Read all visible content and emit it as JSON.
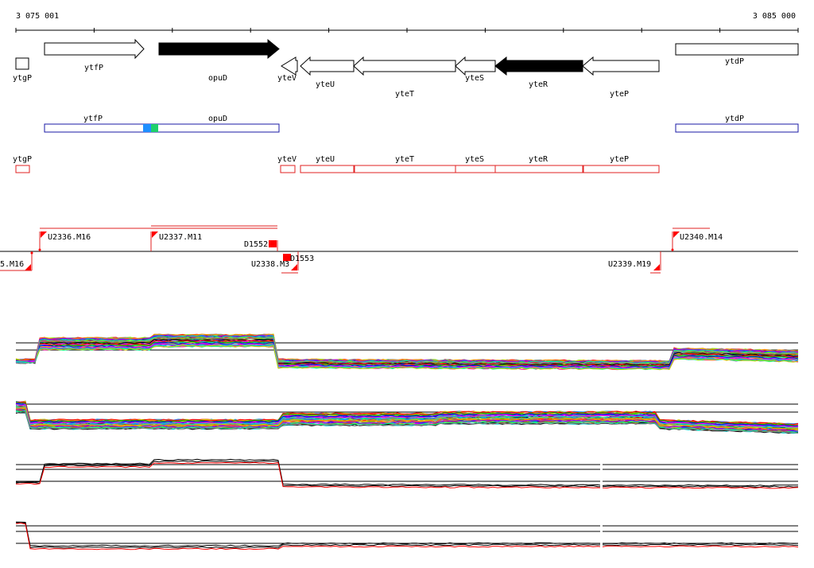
{
  "ruler": {
    "start_label": "3 075 001",
    "end_label": "3 085 000"
  },
  "genes": {
    "top_row": [
      {
        "label": "ytgP",
        "strand": "none",
        "fill": "open"
      },
      {
        "label": "ytfP",
        "strand": "forward",
        "fill": "open"
      },
      {
        "label": "opuD",
        "strand": "forward",
        "fill": "solid"
      },
      {
        "label": "yteV",
        "strand": "reverse",
        "fill": "open"
      },
      {
        "label": "yteU",
        "strand": "reverse",
        "fill": "open"
      },
      {
        "label": "yteT",
        "strand": "reverse",
        "fill": "open"
      },
      {
        "label": "yteS",
        "strand": "reverse",
        "fill": "open"
      },
      {
        "label": "yteR",
        "strand": "reverse",
        "fill": "solid"
      },
      {
        "label": "yteP",
        "strand": "reverse",
        "fill": "open"
      },
      {
        "label": "ytdP",
        "strand": "none",
        "fill": "open"
      }
    ],
    "blue_row": [
      {
        "label": "ytfP"
      },
      {
        "label": "opuD"
      },
      {
        "label": "ytdP"
      }
    ],
    "red_row": [
      {
        "label": "ytgP"
      },
      {
        "label": "yteV"
      },
      {
        "label": "yteU"
      },
      {
        "label": "yteT"
      },
      {
        "label": "yteS"
      },
      {
        "label": "yteR"
      },
      {
        "label": "yteP"
      }
    ]
  },
  "transcription_units": {
    "upper": [
      {
        "label": "U2336.M16"
      },
      {
        "label": "U2337.M11"
      },
      {
        "label": "D1552"
      },
      {
        "label": "U2340.M14"
      }
    ],
    "lower": [
      {
        "label": "5.M16"
      },
      {
        "label": "U2338.M3"
      },
      {
        "label": "D1553"
      },
      {
        "label": "U2339.M19"
      }
    ]
  },
  "colors": {
    "gene_outline": "#000000",
    "blue_box": "#1a1aa6",
    "red_box": "#e02020",
    "marker": "#ff0000",
    "highlight_blue": "#1f8fff",
    "highlight_green": "#1fd06a"
  },
  "profiles": [
    {
      "name": "expression-panel-1"
    },
    {
      "name": "expression-panel-2"
    },
    {
      "name": "expression-panel-3"
    },
    {
      "name": "expression-panel-4"
    }
  ]
}
